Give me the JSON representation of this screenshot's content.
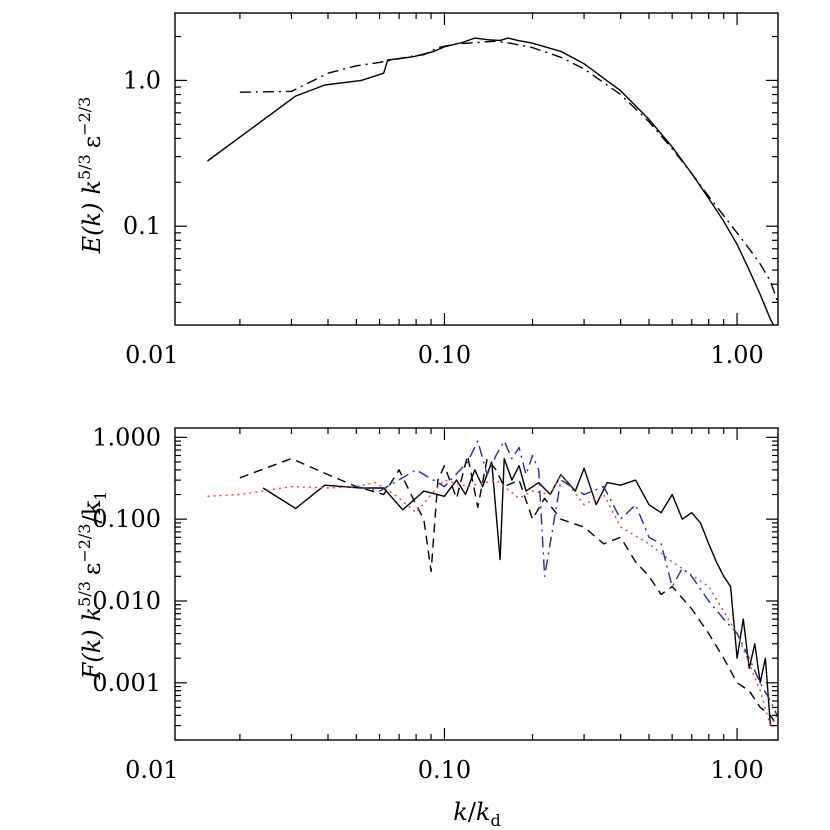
{
  "chart_data": [
    {
      "type": "line",
      "panel": "top",
      "xscale": "log",
      "yscale": "log",
      "xlim": [
        0.012,
        1.38
      ],
      "ylim": [
        0.021,
        2.9
      ],
      "xticks": [
        {
          "v": 0.01,
          "label": "0.01"
        },
        {
          "v": 0.1,
          "label": "0.10"
        },
        {
          "v": 1.0,
          "label": "1.00"
        }
      ],
      "yticks": [
        {
          "v": 0.1,
          "label": "0.1"
        },
        {
          "v": 1.0,
          "label": "1.0"
        }
      ],
      "ylabel": {
        "main": "E(k)",
        "k": "k",
        "kexp": "5/3",
        "eps": "ε",
        "epsexp": "−2/3"
      },
      "xlabel": null,
      "series": [
        {
          "style": "solid",
          "color": "#000000",
          "x": [
            0.0155,
            0.031,
            0.039,
            0.052,
            0.062,
            0.064,
            0.072,
            0.079,
            0.092,
            0.1,
            0.115,
            0.127,
            0.142,
            0.155,
            0.165,
            0.178,
            0.2,
            0.25,
            0.3,
            0.4,
            0.5,
            0.6,
            0.7,
            0.8,
            0.9,
            1.0,
            1.1,
            1.2,
            1.3,
            1.35
          ],
          "y": [
            0.28,
            0.78,
            0.93,
            1.0,
            1.12,
            1.38,
            1.42,
            1.46,
            1.58,
            1.7,
            1.82,
            1.95,
            1.9,
            1.88,
            1.95,
            1.88,
            1.8,
            1.58,
            1.3,
            0.85,
            0.54,
            0.35,
            0.23,
            0.155,
            0.108,
            0.075,
            0.05,
            0.034,
            0.023,
            0.02
          ]
        },
        {
          "style": "dashdot",
          "color": "#000000",
          "x": [
            0.02,
            0.03,
            0.04,
            0.05,
            0.06,
            0.075,
            0.085,
            0.095,
            0.11,
            0.13,
            0.15,
            0.17,
            0.2,
            0.25,
            0.3,
            0.4,
            0.5,
            0.6,
            0.7,
            0.8,
            0.9,
            1.0,
            1.1,
            1.2,
            1.3,
            1.37
          ],
          "y": [
            0.83,
            0.84,
            1.12,
            1.26,
            1.33,
            1.45,
            1.5,
            1.68,
            1.78,
            1.82,
            1.86,
            1.79,
            1.68,
            1.44,
            1.2,
            0.8,
            0.52,
            0.34,
            0.23,
            0.16,
            0.118,
            0.09,
            0.07,
            0.055,
            0.042,
            0.031
          ]
        }
      ]
    },
    {
      "type": "line",
      "panel": "bottom",
      "xscale": "log",
      "yscale": "log",
      "xlim": [
        0.012,
        1.38
      ],
      "ylim": [
        0.0002,
        1.3
      ],
      "xticks": [
        {
          "v": 0.01,
          "label": "0.01"
        },
        {
          "v": 0.1,
          "label": "0.10"
        },
        {
          "v": 1.0,
          "label": "1.00"
        }
      ],
      "yticks": [
        {
          "v": 0.001,
          "label": "0.001"
        },
        {
          "v": 0.01,
          "label": "0.010"
        },
        {
          "v": 0.1,
          "label": "0.100"
        },
        {
          "v": 1.0,
          "label": "1.000"
        }
      ],
      "ylabel": {
        "main": "F(k)",
        "k": "k",
        "kexp": "5/3",
        "eps": "ε",
        "epsexp": "−2/3",
        "tail": "/k",
        "tailsub": "1"
      },
      "xlabel": {
        "k": "k",
        "slash": "/",
        "kd": "k",
        "sub": "d"
      },
      "series": [
        {
          "style": "solid",
          "color": "#000000",
          "x": [
            0.024,
            0.031,
            0.039,
            0.052,
            0.062,
            0.072,
            0.085,
            0.1,
            0.11,
            0.118,
            0.127,
            0.135,
            0.145,
            0.155,
            0.16,
            0.17,
            0.18,
            0.19,
            0.21,
            0.23,
            0.25,
            0.28,
            0.3,
            0.33,
            0.36,
            0.4,
            0.45,
            0.5,
            0.55,
            0.6,
            0.65,
            0.7,
            0.75,
            0.8,
            0.85,
            0.9,
            0.95,
            1.0,
            1.05,
            1.1,
            1.15,
            1.2,
            1.25,
            1.3,
            1.35
          ],
          "y": [
            0.24,
            0.135,
            0.26,
            0.24,
            0.24,
            0.13,
            0.22,
            0.19,
            0.3,
            0.2,
            0.4,
            0.25,
            0.5,
            0.032,
            0.55,
            0.3,
            0.45,
            0.22,
            0.28,
            0.2,
            0.35,
            0.22,
            0.42,
            0.15,
            0.28,
            0.26,
            0.3,
            0.15,
            0.12,
            0.2,
            0.1,
            0.12,
            0.09,
            0.05,
            0.03,
            0.02,
            0.015,
            0.002,
            0.006,
            0.0015,
            0.003,
            0.001,
            0.002,
            0.0003,
            0.0003
          ]
        },
        {
          "style": "dashed",
          "color": "#000000",
          "x": [
            0.02,
            0.03,
            0.04,
            0.05,
            0.062,
            0.07,
            0.08,
            0.085,
            0.09,
            0.095,
            0.1,
            0.11,
            0.12,
            0.13,
            0.14,
            0.15,
            0.16,
            0.18,
            0.2,
            0.22,
            0.25,
            0.3,
            0.35,
            0.4,
            0.45,
            0.5,
            0.55,
            0.6,
            0.7,
            0.8,
            0.9,
            1.0,
            1.1,
            1.2,
            1.3,
            1.37
          ],
          "y": [
            0.32,
            0.55,
            0.35,
            0.25,
            0.2,
            0.4,
            0.15,
            0.1,
            0.023,
            0.3,
            0.45,
            0.18,
            0.6,
            0.14,
            0.55,
            0.4,
            0.25,
            0.3,
            0.1,
            0.18,
            0.1,
            0.08,
            0.05,
            0.06,
            0.03,
            0.02,
            0.012,
            0.015,
            0.008,
            0.004,
            0.002,
            0.001,
            0.0008,
            0.0005,
            0.0004,
            0.0003
          ]
        },
        {
          "style": "dotted",
          "color": "#e8432f",
          "x": [
            0.0155,
            0.02,
            0.03,
            0.04,
            0.05,
            0.058,
            0.065,
            0.07,
            0.08,
            0.09,
            0.1,
            0.12,
            0.15,
            0.18,
            0.2,
            0.23,
            0.25,
            0.3,
            0.35,
            0.4,
            0.5,
            0.6,
            0.8,
            1.0,
            1.2,
            1.3,
            1.37
          ],
          "y": [
            0.19,
            0.2,
            0.25,
            0.24,
            0.25,
            0.28,
            0.22,
            0.18,
            0.12,
            0.2,
            0.3,
            0.25,
            0.3,
            0.18,
            0.22,
            0.2,
            0.35,
            0.15,
            0.2,
            0.08,
            0.05,
            0.03,
            0.015,
            0.004,
            0.0008,
            0.0003,
            0.0004
          ]
        },
        {
          "style": "dashdot",
          "color": "#2b2b9e",
          "x": [
            0.05,
            0.06,
            0.08,
            0.1,
            0.12,
            0.13,
            0.14,
            0.15,
            0.16,
            0.17,
            0.18,
            0.19,
            0.2,
            0.21,
            0.22,
            0.25,
            0.3,
            0.35,
            0.4,
            0.45,
            0.5,
            0.55,
            0.6,
            0.65,
            0.7,
            0.8,
            0.9,
            1.0,
            1.1,
            1.2,
            1.3,
            1.37
          ],
          "y": [
            0.25,
            0.22,
            0.4,
            0.25,
            0.5,
            0.9,
            0.35,
            0.6,
            0.9,
            0.55,
            0.75,
            0.35,
            0.6,
            0.4,
            0.02,
            0.3,
            0.2,
            0.25,
            0.1,
            0.15,
            0.06,
            0.05,
            0.015,
            0.025,
            0.02,
            0.01,
            0.006,
            0.004,
            0.002,
            0.001,
            0.0006,
            0.0004
          ]
        }
      ]
    }
  ]
}
